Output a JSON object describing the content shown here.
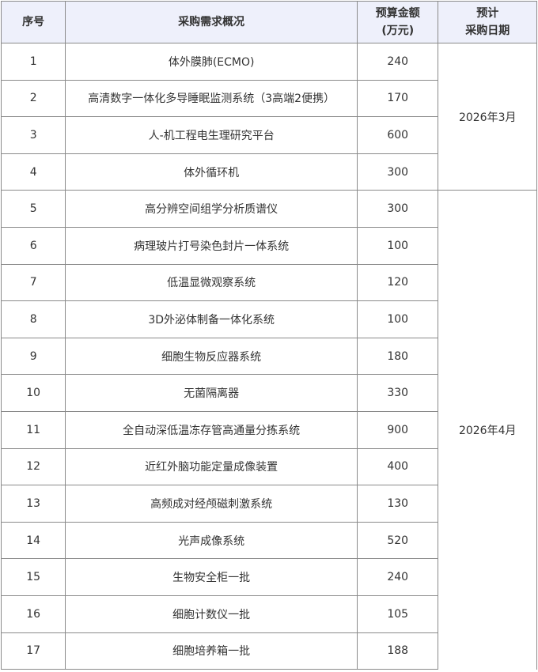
{
  "headers": {
    "no": "序号",
    "desc": "采购需求概况",
    "budget_l1": "预算金额",
    "budget_l2": "(万元)",
    "date_l1": "预计",
    "date_l2": "采购日期"
  },
  "rows": [
    {
      "no": "1",
      "desc": "体外膜肺(ECMO)",
      "budget": "240"
    },
    {
      "no": "2",
      "desc": "高清数字一体化多导睡眠监测系统（3高端2便携）",
      "budget": "170"
    },
    {
      "no": "3",
      "desc": "人-机工程电生理研究平台",
      "budget": "600"
    },
    {
      "no": "4",
      "desc": "体外循环机",
      "budget": "300"
    },
    {
      "no": "5",
      "desc": "高分辨空间组学分析质谱仪",
      "budget": "300"
    },
    {
      "no": "6",
      "desc": "病理玻片打号染色封片一体系统",
      "budget": "100"
    },
    {
      "no": "7",
      "desc": "低温显微观察系统",
      "budget": "120"
    },
    {
      "no": "8",
      "desc": "3D外泌体制备一体化系统",
      "budget": "100"
    },
    {
      "no": "9",
      "desc": "细胞生物反应器系统",
      "budget": "180"
    },
    {
      "no": "10",
      "desc": "无菌隔离器",
      "budget": "330"
    },
    {
      "no": "11",
      "desc": "全自动深低温冻存管高通量分拣系统",
      "budget": "900"
    },
    {
      "no": "12",
      "desc": "近红外脑功能定量成像装置",
      "budget": "400"
    },
    {
      "no": "13",
      "desc": "高频成对经颅磁刺激系统",
      "budget": "130"
    },
    {
      "no": "14",
      "desc": "光声成像系统",
      "budget": "520"
    },
    {
      "no": "15",
      "desc": "生物安全柜一批",
      "budget": "240"
    },
    {
      "no": "16",
      "desc": "细胞计数仪一批",
      "budget": "105"
    },
    {
      "no": "17",
      "desc": "细胞培养箱一批",
      "budget": "188"
    }
  ],
  "dates": {
    "march": "2026年3月",
    "april": "2026年4月"
  },
  "colors": {
    "header_bg": "#eef0fb",
    "border": "#8a8a8a"
  }
}
